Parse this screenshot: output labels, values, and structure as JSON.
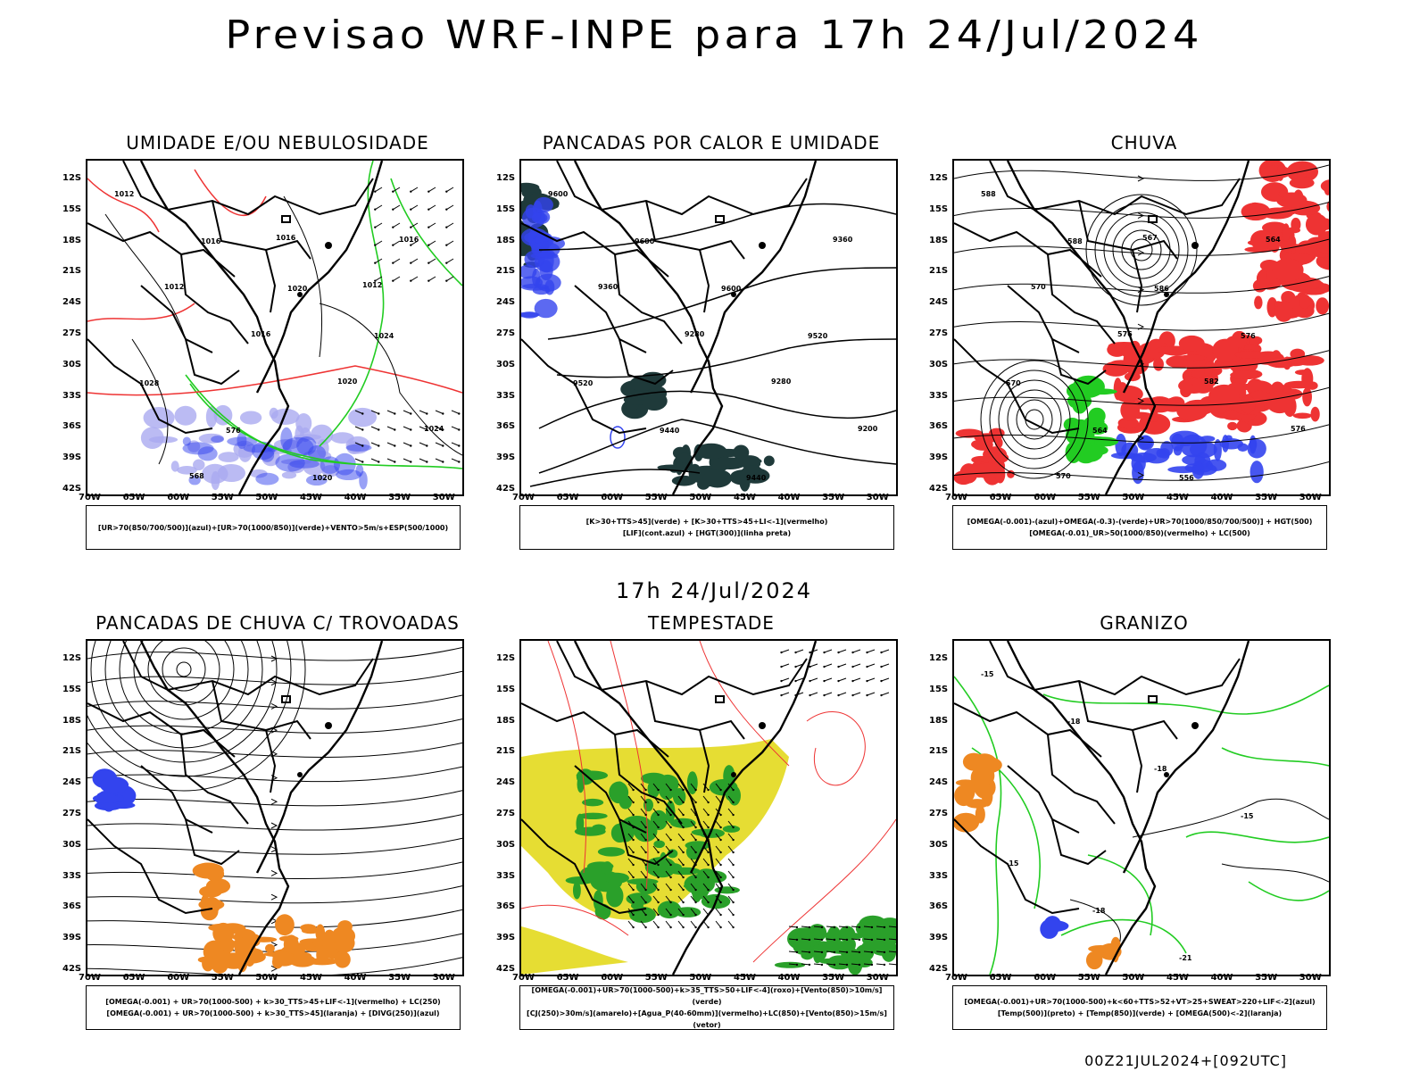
{
  "main_title": "Previsao WRF-INPE  para 17h 24/Jul/2024",
  "mid_title": "17h 24/Jul/2024",
  "footer": "00Z21JUL2024+[092UTC]",
  "lat_labels": [
    "12S",
    "15S",
    "18S",
    "21S",
    "24S",
    "27S",
    "30S",
    "33S",
    "36S",
    "39S",
    "42S"
  ],
  "lon_labels": [
    "70W",
    "65W",
    "60W",
    "55W",
    "50W",
    "45W",
    "40W",
    "35W",
    "30W"
  ],
  "panels": [
    {
      "title": "UMIDADE E/OU NEBULOSIDADE",
      "legend_lines": [
        "[UR>70(850/700/500)](azul)+[UR>70(1000/850)](verde)+VENTO>5m/s+ESP(500/1000)"
      ],
      "contour_labels": [
        "1012",
        "1016",
        "1020",
        "1024",
        "1028",
        "576",
        "1020",
        "1016",
        "1012",
        "1016",
        "1020",
        "1024",
        "568",
        "1016",
        "1012"
      ]
    },
    {
      "title": "PANCADAS POR CALOR E UMIDADE",
      "legend_lines": [
        "[K>30+TTS>45](verde) + [K>30+TTS>45+LI<-1](vermelho)",
        "[LIF](cont.azul) + [HGT(300)](linha preta)"
      ],
      "contour_labels": [
        "9600",
        "9600",
        "9600",
        "9520",
        "9520",
        "9440",
        "9440",
        "9360",
        "9360",
        "9280",
        "9280",
        "9200"
      ]
    },
    {
      "title": "CHUVA",
      "legend_lines": [
        "[OMEGA(-0.001)-(azul)+OMEGA(-0.3)-(verde)+UR>70(1000/850/700/500)] + HGT(500)",
        "[OMEGA(-0.01)_UR>50(1000/850)(vermelho) + LC(500)"
      ],
      "contour_labels": [
        "588",
        "588",
        "586",
        "576",
        "570",
        "564",
        "556",
        "564",
        "570",
        "576",
        "582",
        "576",
        "570",
        "567"
      ]
    },
    {
      "title": "PANCADAS DE CHUVA C/ TROVOADAS",
      "legend_lines": [
        "[OMEGA(-0.001) + UR>70(1000-500) + k>30_TTS>45+LIF<-1](vermelho) + LC(250)",
        "[OMEGA(-0.001) + UR>70(1000-500) + k>30_TTS>45](laranja) + [DIVG(250)](azul)"
      ],
      "contour_labels": []
    },
    {
      "title": "TEMPESTADE",
      "legend_lines": [
        "[OMEGA(-0.001)+UR>70(1000-500)+k>35_TTS>50+LIF<-4](roxo)+[Vento(850)>10m/s](verde)",
        "[CJ(250)>30m/s](amarelo)+[Agua_P(40-60mm)](vermelho)+LC(850)+[Vento(850)>15m/s](vetor)"
      ],
      "contour_labels": []
    },
    {
      "title": "GRANIZO",
      "legend_lines": [
        "[OMEGA(-0.001)+UR>70(1000-500)+k<60+TTS>52+VT>25+SWEAT>220+LIF<-2](azul)",
        "[Temp(500)](preto) + [Temp(850)](verde) + [OMEGA(500)<-2](laranja)"
      ],
      "contour_labels": [
        "-15",
        "-18",
        "-18",
        "-15",
        "-15",
        "-18",
        "-21"
      ]
    }
  ],
  "colors": {
    "blue": "#3344ee",
    "green": "#22cc22",
    "red": "#ee3333",
    "orange": "#ee8822",
    "yellow": "#e6dd33",
    "darkteal": "#1f3a3a",
    "lavender": "#aaaaf0",
    "darkgreen": "#2aa02a"
  }
}
